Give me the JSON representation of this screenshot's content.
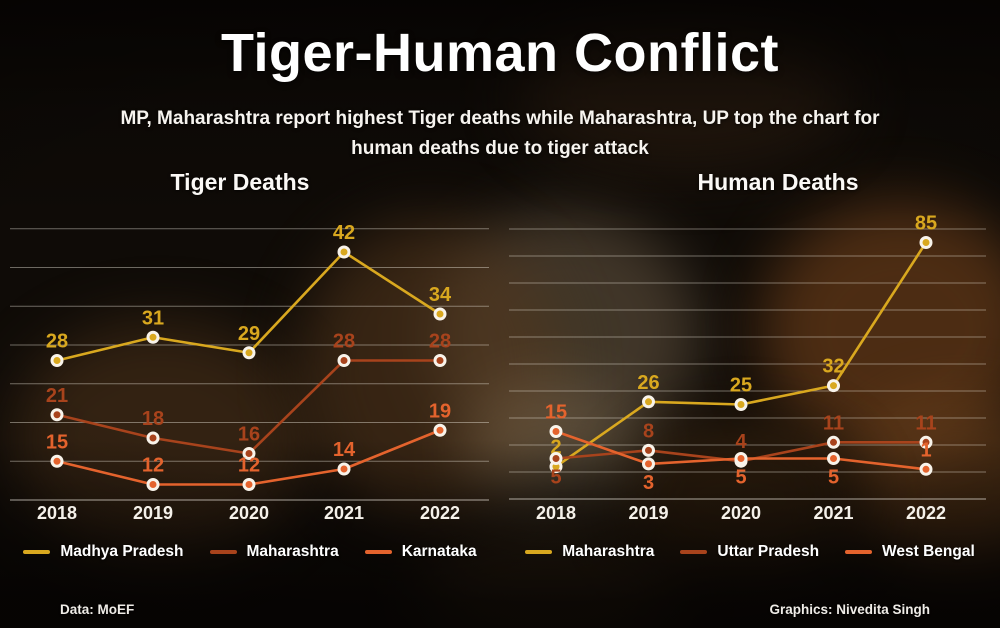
{
  "header": {
    "title": "Tiger-Human Conflict",
    "subtitle": "MP, Maharashtra report highest Tiger deaths while Maharashtra, UP top the chart for\nhuman deaths due to tiger attack"
  },
  "footer": {
    "data_source": "Data: MoEF",
    "credit": "Graphics: Nivedita Singh"
  },
  "colors": {
    "yellow": "#d9a81f",
    "dark_red": "#a8431c",
    "orange": "#e4632d",
    "dot_ring": "#f8f3ea",
    "grid": "rgba(240,235,225,0.42)",
    "axis": "rgba(240,235,225,0.55)",
    "year_label": "#f5f1ea"
  },
  "chart_data": [
    {
      "type": "line",
      "title": "Tiger Deaths",
      "xlabel": "",
      "ylabel": "",
      "categories": [
        "2018",
        "2019",
        "2020",
        "2021",
        "2022"
      ],
      "series": [
        {
          "name": "Madhya Pradesh",
          "color": "#d9a81f",
          "values": [
            28,
            31,
            29,
            42,
            34
          ],
          "label_pos": [
            "above",
            "above",
            "above",
            "above",
            "above"
          ]
        },
        {
          "name": "Maharashtra",
          "color": "#a8431c",
          "values": [
            21,
            18,
            16,
            28,
            28
          ],
          "label_pos": [
            "above",
            "above",
            "above",
            "above",
            "above"
          ]
        },
        {
          "name": "Karnataka",
          "color": "#e4632d",
          "values": [
            15,
            12,
            12,
            14,
            19
          ],
          "label_pos": [
            "above",
            "above",
            "above",
            "above",
            "above"
          ]
        }
      ],
      "ylim": [
        10,
        48
      ],
      "grid_min": 15,
      "grid_max": 45,
      "grid_step": 5,
      "grid": true,
      "legend_position": "bottom"
    },
    {
      "type": "line",
      "title": "Human Deaths",
      "xlabel": "",
      "ylabel": "",
      "categories": [
        "2018",
        "2019",
        "2020",
        "2021",
        "2022"
      ],
      "series": [
        {
          "name": "Maharashtra",
          "color": "#d9a81f",
          "values": [
            2,
            26,
            25,
            32,
            85
          ],
          "label_pos": [
            "above",
            "above",
            "above",
            "above",
            "above"
          ]
        },
        {
          "name": "Uttar Pradesh",
          "color": "#a8431c",
          "values": [
            5,
            8,
            4,
            11,
            11
          ],
          "label_pos": [
            "below",
            "above",
            "above",
            "above",
            "above"
          ]
        },
        {
          "name": "West Bengal",
          "color": "#e4632d",
          "values": [
            15,
            3,
            5,
            5,
            1
          ],
          "label_pos": [
            "above",
            "below",
            "below",
            "below",
            "above"
          ]
        }
      ],
      "ylim": [
        -10,
        100
      ],
      "grid_min": 0,
      "grid_max": 90,
      "grid_step": 10,
      "grid": true,
      "legend_position": "bottom"
    }
  ]
}
